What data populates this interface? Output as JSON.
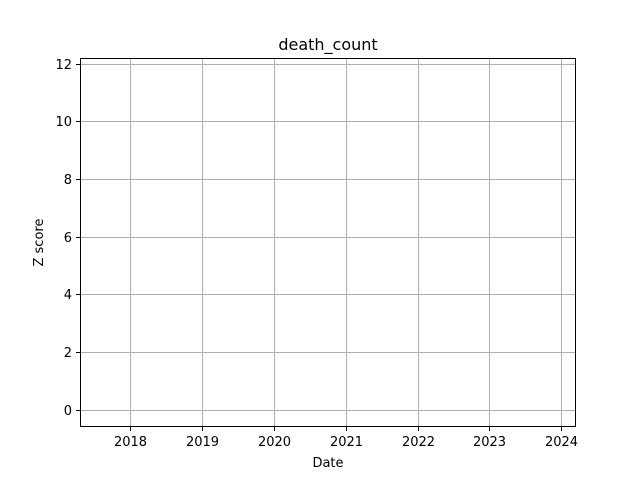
{
  "chart_data": {
    "type": "line",
    "title": "death_count",
    "xlabel": "Date",
    "ylabel": "Z score",
    "x_ticks": [
      "2018",
      "2019",
      "2020",
      "2021",
      "2022",
      "2023",
      "2024"
    ],
    "y_ticks": [
      "0",
      "2",
      "4",
      "6",
      "8",
      "10",
      "12"
    ],
    "xlim": [
      "2017-04-24",
      "2024-03-15"
    ],
    "ylim": [
      -0.6,
      12.2
    ],
    "grid": true,
    "series": []
  }
}
